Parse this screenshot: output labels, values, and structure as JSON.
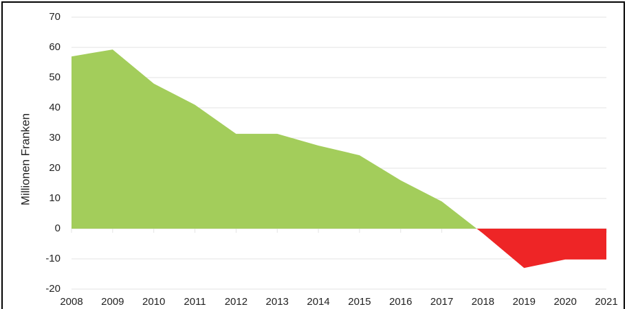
{
  "chart_data": {
    "type": "area",
    "ylabel": "Millionen Franken",
    "x": [
      2008,
      2009,
      2010,
      2011,
      2012,
      2013,
      2014,
      2015,
      2016,
      2017,
      2018,
      2019,
      2020,
      2021
    ],
    "values": [
      57,
      59.3,
      48,
      41,
      31.4,
      31.4,
      27.5,
      24.3,
      16,
      9,
      -1.6,
      -13,
      -10.2,
      -10.2
    ],
    "positive_color": "#a3cd5b",
    "negative_color": "#ee2526",
    "xlim": [
      2008,
      2021
    ],
    "xticks": [
      2008,
      2009,
      2010,
      2011,
      2012,
      2013,
      2014,
      2015,
      2016,
      2017,
      2018,
      2019,
      2020,
      2021
    ],
    "ylim": [
      -20,
      70
    ],
    "yticks": [
      -20,
      -10,
      0,
      10,
      20,
      30,
      40,
      50,
      60,
      70
    ],
    "grid": true
  }
}
